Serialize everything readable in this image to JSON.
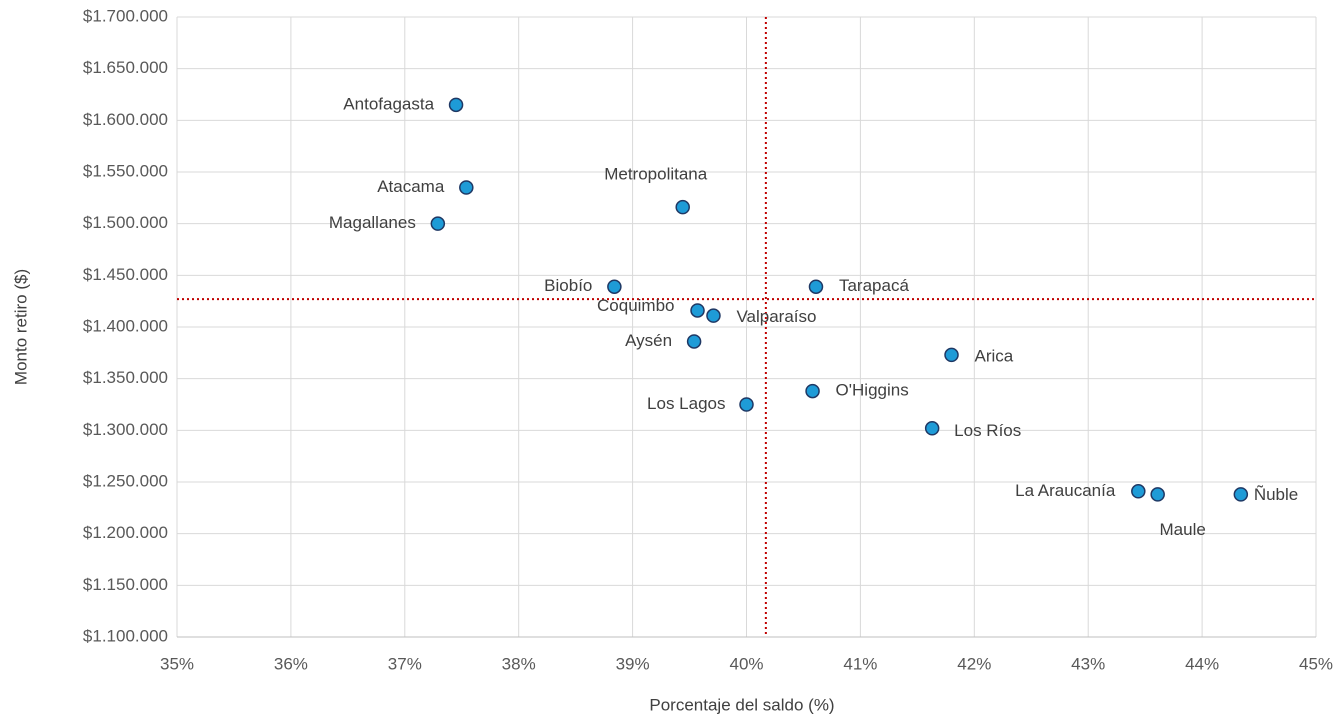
{
  "chart_data": {
    "type": "scatter",
    "x_label": "Porcentaje del saldo (%)",
    "y_label": "Monto retiro ($)",
    "labels": [
      "Antofagasta",
      "Atacama",
      "Magallanes",
      "Metropolitana",
      "Biobío",
      "Tarapacá",
      "Coquimbo",
      "Valparaíso",
      "Aysén",
      "Arica",
      "O'Higgins",
      "Los Lagos",
      "Los Ríos",
      "La Araucanía",
      "Maule",
      "Ñuble"
    ],
    "x": [
      37.45,
      37.54,
      37.29,
      39.44,
      38.84,
      40.61,
      39.57,
      39.71,
      39.54,
      41.8,
      40.58,
      40.0,
      41.63,
      43.44,
      43.61,
      44.34
    ],
    "values": [
      1615000,
      1535000,
      1500000,
      1516000,
      1439000,
      1439000,
      1416000,
      1411000,
      1386000,
      1373000,
      1338000,
      1325000,
      1302000,
      1241000,
      1238000,
      1238000
    ],
    "color": "#1e9bd7",
    "edge_color": "#1f3864",
    "xlim": [
      35,
      45
    ],
    "ylim": [
      1100000,
      1700000
    ],
    "xticks": [
      {
        "value": 35,
        "label": "35%"
      },
      {
        "value": 36,
        "label": "36%"
      },
      {
        "value": 37,
        "label": "37%"
      },
      {
        "value": 38,
        "label": "38%"
      },
      {
        "value": 39,
        "label": "39%"
      },
      {
        "value": 40,
        "label": "40%"
      },
      {
        "value": 41,
        "label": "41%"
      },
      {
        "value": 42,
        "label": "42%"
      },
      {
        "value": 43,
        "label": "43%"
      },
      {
        "value": 44,
        "label": "44%"
      },
      {
        "value": 45,
        "label": "45%"
      }
    ],
    "yticks": [
      {
        "value": 1100000,
        "label": "$1.100.000"
      },
      {
        "value": 1150000,
        "label": "$1.150.000"
      },
      {
        "value": 1200000,
        "label": "$1.200.000"
      },
      {
        "value": 1250000,
        "label": "$1.250.000"
      },
      {
        "value": 1300000,
        "label": "$1.300.000"
      },
      {
        "value": 1350000,
        "label": "$1.350.000"
      },
      {
        "value": 1400000,
        "label": "$1.400.000"
      },
      {
        "value": 1450000,
        "label": "$1.450.000"
      },
      {
        "value": 1500000,
        "label": "$1.500.000"
      },
      {
        "value": 1550000,
        "label": "$1.550.000"
      },
      {
        "value": 1600000,
        "label": "$1.600.000"
      },
      {
        "value": 1650000,
        "label": "$1.650.000"
      },
      {
        "value": 1700000,
        "label": "$1.700.000"
      }
    ],
    "grid": true,
    "reference_lines": {
      "x": 40.17,
      "y": 1427000,
      "color": "#c00000"
    }
  }
}
